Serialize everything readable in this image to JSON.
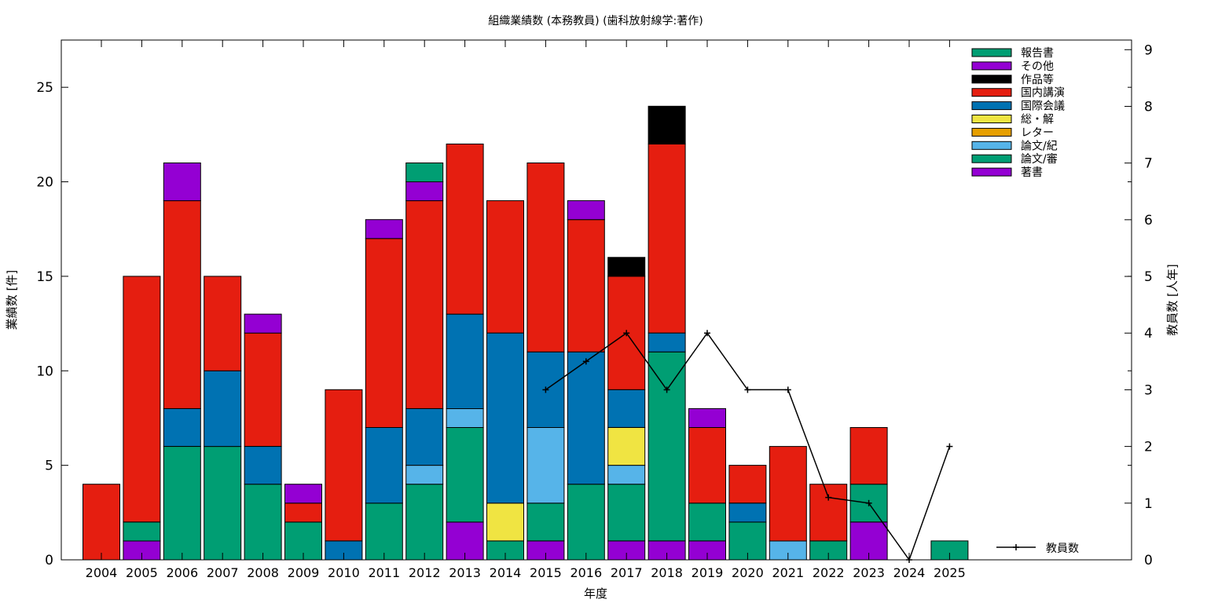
{
  "chart_data": {
    "type": "bar",
    "stacked": true,
    "title": "組織業績数 (本務教員) (歯科放射線学:著作)",
    "xlabel": "年度",
    "ylabel": "業績数 [件]",
    "y2label": "教員数 [人年]",
    "ylim": [
      0,
      27.5
    ],
    "yticks": [
      0,
      5,
      10,
      15,
      20,
      25
    ],
    "y2lim": [
      0,
      9.17
    ],
    "y2ticks": [
      0,
      1,
      2,
      3,
      4,
      5,
      6,
      7,
      8,
      9
    ],
    "grid": false,
    "legend_position": "top-right",
    "categories": [
      "2004",
      "2005",
      "2006",
      "2007",
      "2008",
      "2009",
      "2010",
      "2011",
      "2012",
      "2013",
      "2014",
      "2015",
      "2016",
      "2017",
      "2018",
      "2019",
      "2020",
      "2021",
      "2022",
      "2023",
      "2024",
      "2025"
    ],
    "series": [
      {
        "name": "著書",
        "color": "#9400d3",
        "values": [
          0,
          1,
          0,
          0,
          0,
          0,
          0,
          0,
          0,
          2,
          0,
          1,
          0,
          1,
          1,
          1,
          0,
          0,
          0,
          2,
          0,
          0
        ]
      },
      {
        "name": "論文/審",
        "color": "#009e73",
        "values": [
          0,
          1,
          6,
          6,
          4,
          2,
          0,
          3,
          4,
          5,
          1,
          2,
          4,
          3,
          10,
          2,
          2,
          0,
          1,
          2,
          0,
          1
        ]
      },
      {
        "name": "論文/紀",
        "color": "#56b4e9",
        "values": [
          0,
          0,
          0,
          0,
          0,
          0,
          0,
          0,
          1,
          1,
          0,
          4,
          0,
          1,
          0,
          0,
          0,
          1,
          0,
          0,
          0,
          0
        ]
      },
      {
        "name": "レター",
        "color": "#e69f00",
        "values": [
          0,
          0,
          0,
          0,
          0,
          0,
          0,
          0,
          0,
          0,
          0,
          0,
          0,
          0,
          0,
          0,
          0,
          0,
          0,
          0,
          0,
          0
        ]
      },
      {
        "name": "総・解",
        "color": "#f0e442",
        "values": [
          0,
          0,
          0,
          0,
          0,
          0,
          0,
          0,
          0,
          0,
          2,
          0,
          0,
          2,
          0,
          0,
          0,
          0,
          0,
          0,
          0,
          0
        ]
      },
      {
        "name": "国際会議",
        "color": "#0072b2",
        "values": [
          0,
          0,
          2,
          4,
          2,
          0,
          1,
          4,
          3,
          5,
          9,
          4,
          7,
          2,
          1,
          0,
          1,
          0,
          0,
          0,
          0,
          0
        ]
      },
      {
        "name": "国内講演",
        "color": "#e51e10",
        "values": [
          4,
          13,
          11,
          5,
          6,
          1,
          8,
          10,
          11,
          9,
          7,
          10,
          7,
          6,
          10,
          4,
          2,
          5,
          3,
          3,
          0,
          0
        ]
      },
      {
        "name": "作品等",
        "color": "#000000",
        "values": [
          0,
          0,
          0,
          0,
          0,
          0,
          0,
          0,
          0,
          0,
          0,
          0,
          0,
          1,
          2,
          0,
          0,
          0,
          0,
          0,
          0,
          0
        ]
      },
      {
        "name": "その他",
        "color": "#9400d3",
        "values": [
          0,
          0,
          2,
          0,
          1,
          1,
          0,
          1,
          1,
          0,
          0,
          0,
          1,
          0,
          0,
          1,
          0,
          0,
          0,
          0,
          0,
          0
        ]
      },
      {
        "name": "報告書",
        "color": "#009e73",
        "values": [
          0,
          0,
          0,
          0,
          0,
          0,
          0,
          0,
          1,
          0,
          0,
          0,
          0,
          0,
          0,
          0,
          0,
          0,
          0,
          0,
          0,
          0
        ]
      }
    ],
    "line_series": {
      "name": "教員数",
      "color": "#000000",
      "axis": "y2",
      "points": [
        {
          "x": "2015",
          "y": 3
        },
        {
          "x": "2016",
          "y": 3.5
        },
        {
          "x": "2017",
          "y": 4
        },
        {
          "x": "2018",
          "y": 3
        },
        {
          "x": "2019",
          "y": 4
        },
        {
          "x": "2020",
          "y": 3
        },
        {
          "x": "2021",
          "y": 3
        },
        {
          "x": "2022",
          "y": 1.1
        },
        {
          "x": "2023",
          "y": 1
        },
        {
          "x": "2024",
          "y": 0
        },
        {
          "x": "2025",
          "y": 2
        }
      ]
    }
  }
}
